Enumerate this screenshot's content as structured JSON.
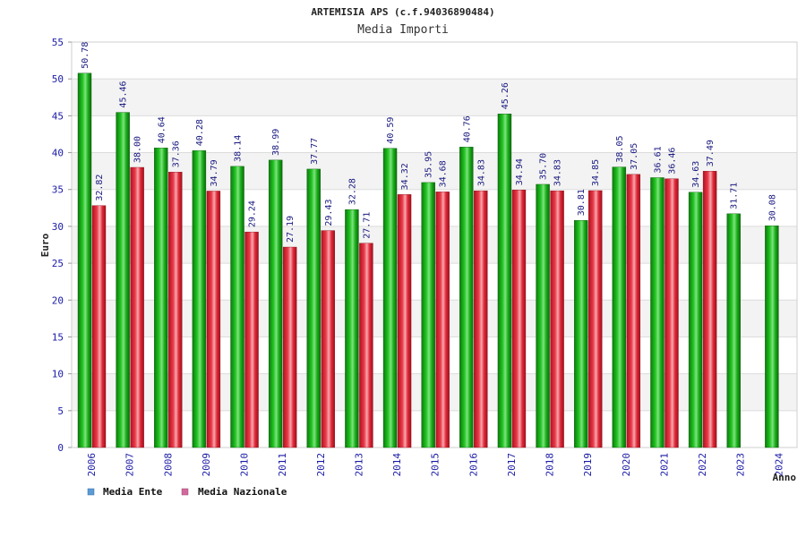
{
  "chart_data": {
    "type": "bar",
    "title": "ARTEMISIA APS (c.f.94036890484)",
    "subtitle": "Media Importi",
    "ylabel": "Euro",
    "xlabel": "Anno",
    "ylim": [
      0,
      55
    ],
    "yticks": [
      0,
      5,
      10,
      15,
      20,
      25,
      30,
      35,
      40,
      45,
      50,
      55
    ],
    "categories": [
      "2006",
      "2007",
      "2008",
      "2009",
      "2010",
      "2011",
      "2012",
      "2013",
      "2014",
      "2015",
      "2016",
      "2017",
      "2018",
      "2019",
      "2020",
      "2021",
      "2022",
      "2023",
      "2024"
    ],
    "series": [
      {
        "name": "Media Ente",
        "color": "#1fa81f",
        "values": [
          50.78,
          45.46,
          40.64,
          40.28,
          38.14,
          38.99,
          37.77,
          32.28,
          40.59,
          35.95,
          40.76,
          45.26,
          35.7,
          30.81,
          38.05,
          36.61,
          34.63,
          31.71,
          30.08
        ],
        "labels": [
          "50.78",
          "45.46",
          "40.64",
          "40.28",
          "38.14",
          "38.99",
          "37.77",
          "32.28",
          "40.59",
          "35.95",
          "40.76",
          "45.26",
          "35.70",
          "30.81",
          "38.05",
          "36.61",
          "34.63",
          "31.71",
          "30.08"
        ]
      },
      {
        "name": "Media Nazionale",
        "color": "#e02a3a",
        "values": [
          32.82,
          38.0,
          37.36,
          34.79,
          29.24,
          27.19,
          29.43,
          27.71,
          34.32,
          34.68,
          34.83,
          34.94,
          34.83,
          34.85,
          37.05,
          36.46,
          37.49,
          null,
          null
        ],
        "labels": [
          "32.82",
          "38.00",
          "37.36",
          "34.79",
          "29.24",
          "27.19",
          "29.43",
          "27.71",
          "34.32",
          "34.68",
          "34.83",
          "34.94",
          "34.83",
          "34.85",
          "37.05",
          "36.46",
          "37.49",
          null,
          null
        ]
      }
    ],
    "legend": {
      "placement": "bottom-left",
      "items": [
        {
          "label": "Media Ente",
          "swatch_color": "#5b9bd5"
        },
        {
          "label": "Media Nazionale",
          "swatch_color": "#d16a9c"
        }
      ]
    },
    "grid": true
  }
}
